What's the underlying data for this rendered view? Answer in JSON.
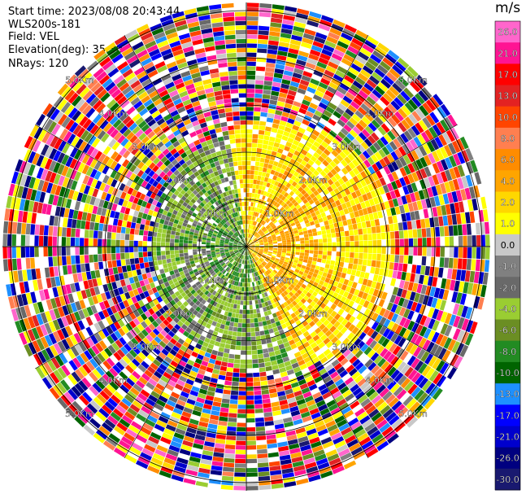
{
  "header": {
    "start_time": "Start time: 2023/08/08 20:43:44",
    "instrument": "WLS200s-181",
    "field": "Field: VEL",
    "elevation": "Elevation(deg): 35.30",
    "nrays": "NRays: 120"
  },
  "chart_data": {
    "type": "heatmap",
    "projection": "polar-ppi",
    "field": "VEL",
    "unit": "m/s",
    "n_rays": 120,
    "range_ring_labels": [
      "1.0Km",
      "2.0Km",
      "3.0Km",
      "4.0Km",
      "5.0Km"
    ],
    "range_ring_labels_shown": [
      "1.0Km",
      "1.0Km",
      "1.0Km",
      "1.0Km",
      "2.0Km",
      "2.0Km",
      "2.0Km",
      "2.0Km",
      "3.0Km",
      "3.0Km",
      "3.0Km",
      "3.0Km",
      "4.0Km",
      "4.0Km",
      "4.0Km",
      "4.0Km",
      "5.0Km",
      "5.0Km",
      "5.0Km",
      "5.0Km"
    ],
    "colorbar": {
      "tick_labels": [
        "26.0",
        "21.0",
        "17.0",
        "13.0",
        "10.0",
        "8.0",
        "6.0",
        "4.0",
        "2.0",
        "1.0",
        "0.0",
        "-1.0",
        "-2.0",
        "-4.0",
        "-6.0",
        "-8.0",
        "-10.0",
        "-13.0",
        "-17.0",
        "-21.0",
        "-26.0",
        "-30.0"
      ],
      "colors": [
        "#ff66cc",
        "#ff1493",
        "#ff0000",
        "#e32222",
        "#ff4500",
        "#ff7f50",
        "#ff8c00",
        "#ffa500",
        "#ffd700",
        "#ffff00",
        "#c8c8c8",
        "#808080",
        "#696969",
        "#9acd32",
        "#6b8e23",
        "#228b22",
        "#006400",
        "#1e90ff",
        "#0000ff",
        "#0000cd",
        "#000080",
        "#191970"
      ]
    },
    "pattern": {
      "near_field_gray_green_region": "west and south-west, ~0–2 Km",
      "near_field_yellow_orange_region": "east and north-east, ~0–3 Km",
      "noisy_outer_region": "beyond ~3 Km, all directions"
    }
  }
}
